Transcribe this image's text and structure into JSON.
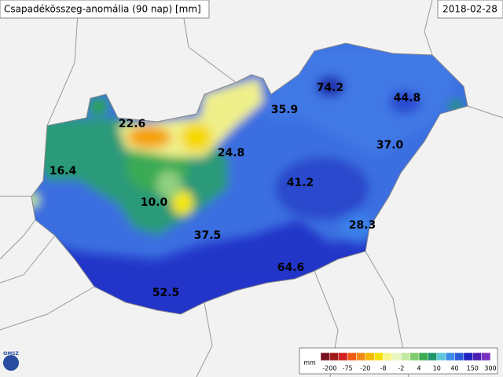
{
  "title": "Csapadékösszeg-anomália (90 nap) [mm]",
  "date": "2018-02-28",
  "logo": "OMSZ",
  "station_values": [
    "22.6",
    "74.2",
    "44.8",
    "35.9",
    "37.0",
    "16.4",
    "24.8",
    "41.2",
    "10.0",
    "28.3",
    "37.5",
    "64.6",
    "52.5"
  ],
  "legend": {
    "unit": "mm",
    "ticks": [
      "-200",
      "-75",
      "-20",
      "-8",
      "-2",
      "4",
      "10",
      "40",
      "150",
      "300"
    ],
    "colors": [
      "#7a1020",
      "#a01818",
      "#d02020",
      "#f05a10",
      "#f08a10",
      "#f5b800",
      "#f5e000",
      "#f5f58a",
      "#e8f5c0",
      "#c0e8a0",
      "#80cc70",
      "#3caa50",
      "#20946a",
      "#5fc8d8",
      "#3a8ae8",
      "#2a5ad8",
      "#2020c0",
      "#4a20b0",
      "#7a30c0"
    ]
  }
}
